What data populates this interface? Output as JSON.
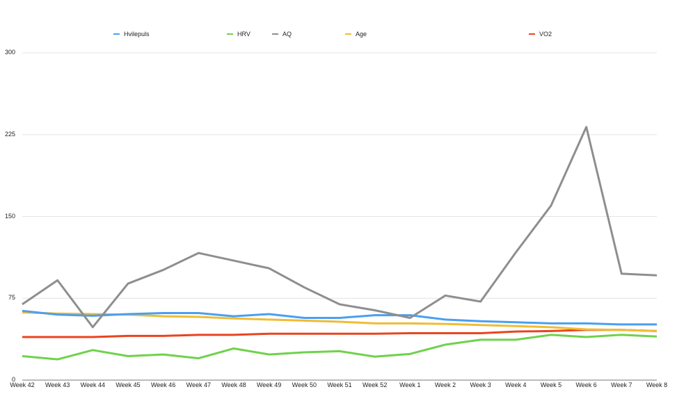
{
  "chart_data": {
    "type": "line",
    "title": "",
    "xlabel": "",
    "ylabel": "",
    "ylim": [
      0,
      300
    ],
    "yticks": [
      0,
      75,
      150,
      225,
      300
    ],
    "grid": true,
    "legend_position": "top",
    "categories": [
      "Week 42",
      "Week 43",
      "Week 44",
      "Week 45",
      "Week 46",
      "Week 47",
      "Week 48",
      "Week 49",
      "Week 50",
      "Week 51",
      "Week 52",
      "Week 1",
      "Week 2",
      "Week 3",
      "Week 4",
      "Week 5",
      "Week 6",
      "Week 7",
      "Week 8"
    ],
    "series": [
      {
        "name": "Hvilepuls",
        "color": "#4a9ff0",
        "values": [
          63.5,
          60,
          59,
          60.5,
          61.5,
          61.5,
          58.5,
          60.5,
          57,
          57,
          59.5,
          59.5,
          55.5,
          54,
          53,
          52,
          52,
          51,
          51
        ]
      },
      {
        "name": "HRV",
        "color": "#6fd24a",
        "values": [
          22,
          19,
          27.5,
          22,
          23.5,
          20,
          29,
          23.5,
          25.5,
          26.5,
          21.5,
          24,
          32.5,
          37,
          37,
          41.5,
          39.5,
          41.5,
          40
        ]
      },
      {
        "name": "AQ",
        "color": "#8e8e8e",
        "values": [
          69.5,
          91.5,
          48.5,
          88.5,
          101,
          116.5,
          109.5,
          102.5,
          85,
          69.5,
          64,
          57,
          77.5,
          72,
          117,
          160,
          232,
          97.5,
          96
        ]
      },
      {
        "name": "Age",
        "color": "#f0bc35",
        "values": [
          62,
          61,
          60.5,
          60,
          58.5,
          58,
          56.5,
          55.5,
          54.5,
          53.5,
          52,
          52,
          51.5,
          50.5,
          49.5,
          48.5,
          46.5,
          46,
          45
        ]
      },
      {
        "name": "VO2",
        "color": "#e9441f",
        "values": [
          39.5,
          39.5,
          39.5,
          40.5,
          40.5,
          41.5,
          41.5,
          42.5,
          42.5,
          42.5,
          42.5,
          43,
          43,
          43,
          44.5,
          45,
          46,
          46,
          45
        ]
      }
    ]
  }
}
